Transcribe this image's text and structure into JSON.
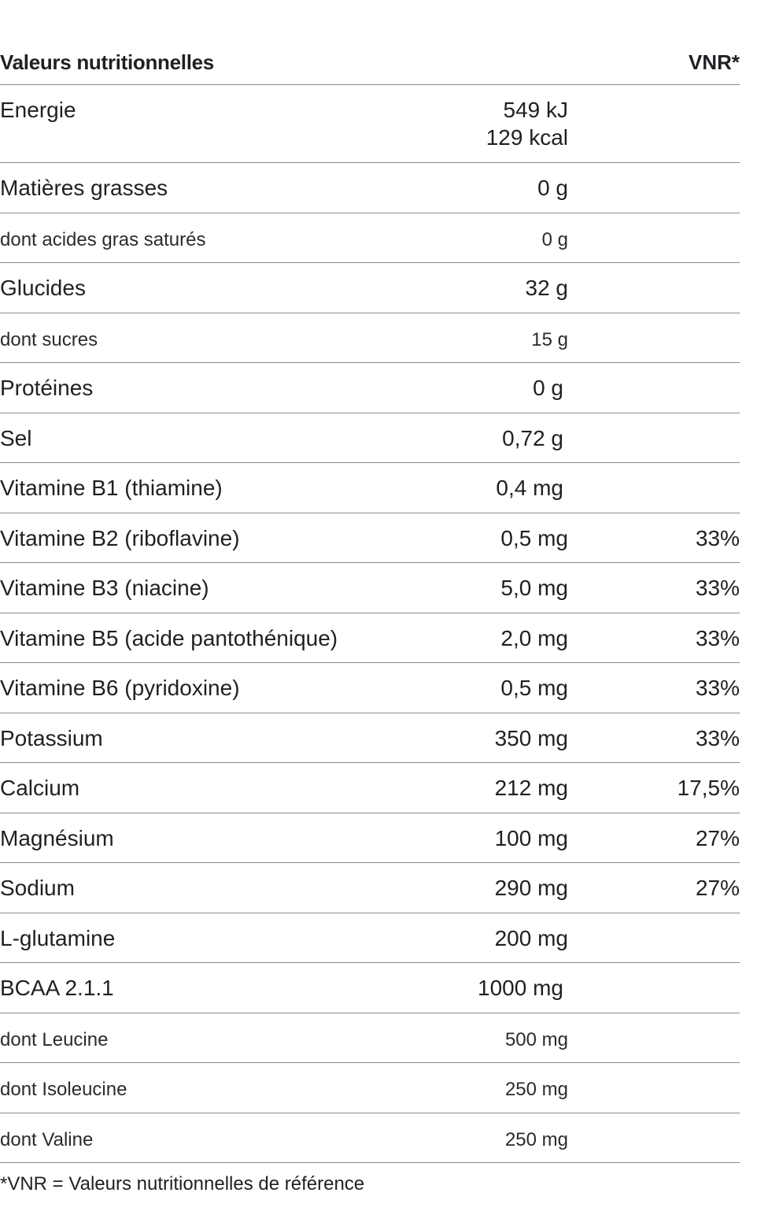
{
  "header": {
    "title": "Valeurs nutritionnelles",
    "vnr_label": "VNR*"
  },
  "rows": [
    {
      "name": "Energie",
      "value": "549 kJ",
      "value2": "129 kcal",
      "vnr": ""
    },
    {
      "name": "Matières grasses",
      "value": "0 g",
      "vnr": ""
    },
    {
      "name": "dont acides gras saturés",
      "value": "0 g",
      "vnr": ""
    },
    {
      "name": "Glucides",
      "value": "32 g",
      "vnr": ""
    },
    {
      "name": "dont sucres",
      "value": "15 g",
      "vnr": ""
    },
    {
      "name": "Protéines",
      "value": "0 g",
      "vnr": ""
    },
    {
      "name": "Sel",
      "value": "0,72 g",
      "vnr": ""
    },
    {
      "name": "Vitamine B1 (thiamine)",
      "value": "0,4 mg",
      "vnr": ""
    },
    {
      "name": "Vitamine B2 (riboflavine)",
      "value": "0,5 mg",
      "vnr": "33%"
    },
    {
      "name": "Vitamine B3 (niacine)",
      "value": "5,0 mg",
      "vnr": "33%"
    },
    {
      "name": "Vitamine B5 (acide pantothénique)",
      "value": "2,0 mg",
      "vnr": "33%"
    },
    {
      "name": "Vitamine B6 (pyridoxine)",
      "value": "0,5 mg",
      "vnr": "33%"
    },
    {
      "name": "Potassium",
      "value": "350 mg",
      "vnr": "33%"
    },
    {
      "name": "Calcium",
      "value": "212 mg",
      "vnr": "17,5%"
    },
    {
      "name": "Magnésium",
      "value": "100 mg",
      "vnr": "27%"
    },
    {
      "name": "Sodium",
      "value": "290 mg",
      "vnr": "27%"
    },
    {
      "name": "L-glutamine",
      "value": "200 mg",
      "vnr": ""
    },
    {
      "name": "BCAA 2.1.1",
      "value": "1000 mg",
      "vnr": ""
    },
    {
      "name": "dont Leucine",
      "value": "500 mg",
      "vnr": ""
    },
    {
      "name": "dont Isoleucine",
      "value": "250 mg",
      "vnr": ""
    },
    {
      "name": "dont Valine",
      "value": "250 mg",
      "vnr": ""
    }
  ],
  "footnote": "*VNR = Valeurs nutritionnelles de référence"
}
